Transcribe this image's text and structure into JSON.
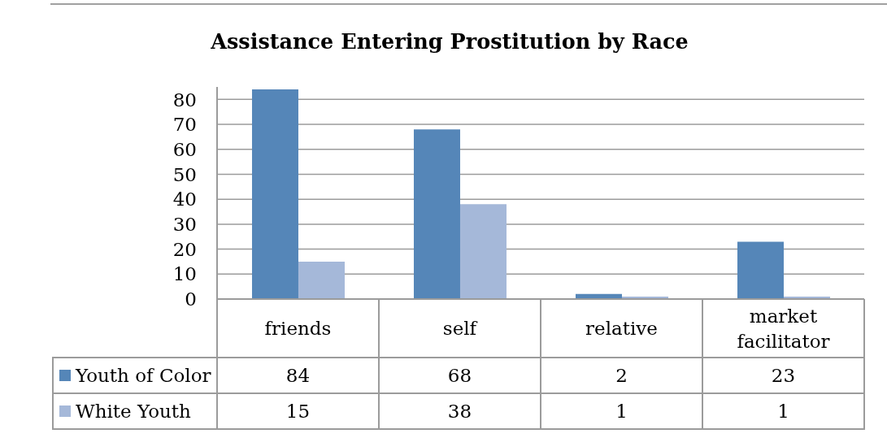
{
  "chart_data": {
    "type": "bar",
    "title": "Assistance Entering Prostitution by Race",
    "categories": [
      "friends",
      "self",
      "relative",
      "market facilitator"
    ],
    "series": [
      {
        "name": "Youth of Color",
        "color": "#5586b8",
        "values": [
          84,
          68,
          2,
          23
        ]
      },
      {
        "name": "White Youth",
        "color": "#a5b8d9",
        "values": [
          15,
          38,
          1,
          1
        ]
      }
    ],
    "ylim": [
      0,
      85
    ],
    "yticks": [
      0,
      10,
      20,
      30,
      40,
      50,
      60,
      70,
      80
    ],
    "grid": "y",
    "legend": "bottom left",
    "data_labels": true
  }
}
